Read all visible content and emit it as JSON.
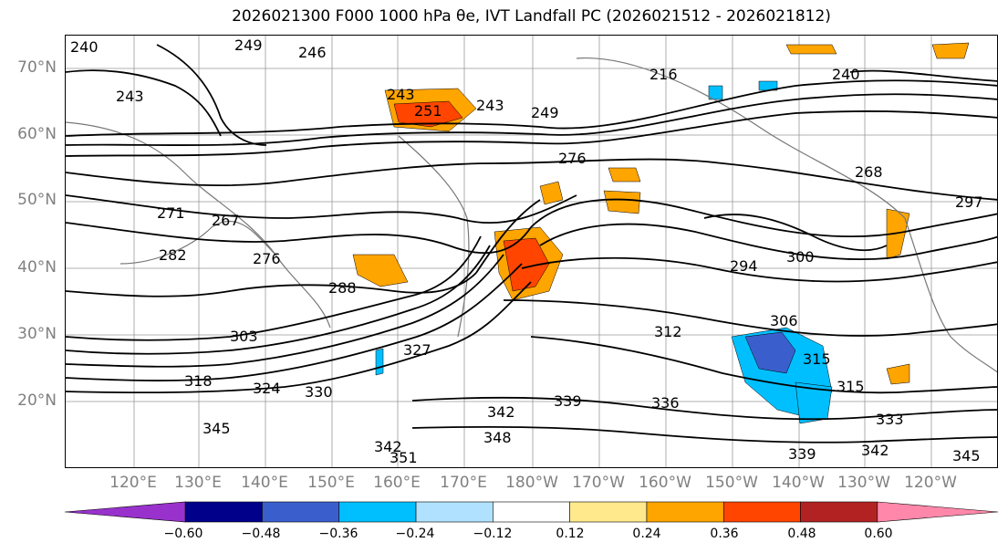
{
  "title": "2026021300 F000 1000 hPa θe, IVT Landfall PC (2026021512 - 2026021812)",
  "lat_labels": [
    "70°N",
    "60°N",
    "50°N",
    "40°N",
    "30°N",
    "20°N"
  ],
  "lon_labels": [
    "120°E",
    "130°E",
    "140°E",
    "150°E",
    "160°E",
    "170°E",
    "180°W",
    "170°W",
    "160°W",
    "150°W",
    "140°W",
    "130°W",
    "120°W"
  ],
  "contour_labels": [
    "240",
    "249",
    "246",
    "243",
    "216",
    "240",
    "243",
    "251",
    "243",
    "249",
    "276",
    "268",
    "297",
    "271",
    "267",
    "282",
    "276",
    "288",
    "294",
    "300",
    "303",
    "312",
    "306",
    "315",
    "318",
    "324",
    "330",
    "327",
    "315",
    "336",
    "339",
    "342",
    "345",
    "348",
    "342",
    "351",
    "333",
    "339",
    "342",
    "345"
  ],
  "colorbar": {
    "ticks": [
      "−0.60",
      "−0.48",
      "−0.36",
      "−0.24",
      "−0.12",
      "0.12",
      "0.24",
      "0.36",
      "0.48",
      "0.60"
    ],
    "colors": [
      "#9932cc",
      "#00008b",
      "#3a5fcd",
      "#00bfff",
      "#b0e2ff",
      "#ffffff",
      "#ffe98c",
      "#ffa500",
      "#ff4500",
      "#b22222",
      "#ff88aa"
    ]
  }
}
